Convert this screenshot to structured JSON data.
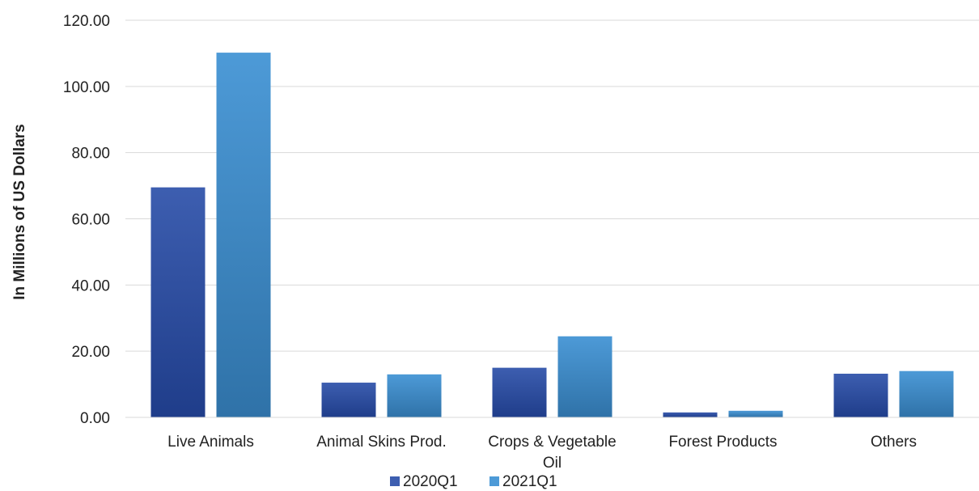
{
  "chart_data": {
    "type": "bar",
    "title": "",
    "xlabel": "",
    "ylabel": "In Millions of US Dollars",
    "ylim": [
      0,
      120
    ],
    "yticks": [
      "0.00",
      "20.00",
      "40.00",
      "60.00",
      "80.00",
      "100.00",
      "120.00"
    ],
    "categories": [
      [
        "Live Animals"
      ],
      [
        "Animal Skins Prod."
      ],
      [
        "Crops & Vegetable",
        "Oil"
      ],
      [
        "Forest Products"
      ],
      [
        "Others"
      ]
    ],
    "series": [
      {
        "name": "2020Q1",
        "values": [
          69.5,
          10.5,
          15.0,
          1.5,
          13.2
        ],
        "color_top": "#3d5eb0",
        "color_bottom": "#1f3d8a"
      },
      {
        "name": "2021Q1",
        "values": [
          110.2,
          13.0,
          24.5,
          2.0,
          14.0
        ],
        "color_top": "#4d9ad7",
        "color_bottom": "#2f72a8"
      }
    ],
    "grid": true,
    "legend_position": "bottom"
  }
}
